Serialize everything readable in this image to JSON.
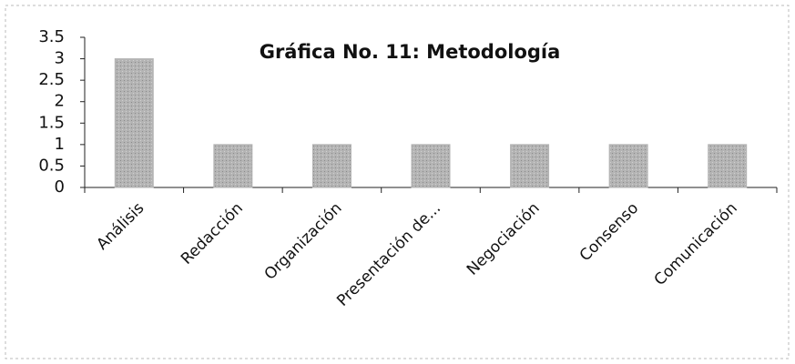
{
  "chart_data": {
    "type": "bar",
    "title": "Gráfica No. 11: Metodología",
    "categories": [
      "Análisis",
      "Redacción",
      "Organización",
      "Presentación de...",
      "Negociación",
      "Consenso",
      "Comunicación"
    ],
    "values": [
      3,
      1,
      1,
      1,
      1,
      1,
      1
    ],
    "color": "#b4b4b4",
    "ylim": [
      0,
      3.5
    ],
    "yticks": [
      0,
      0.5,
      1,
      1.5,
      2,
      2.5,
      3,
      3.5
    ]
  }
}
